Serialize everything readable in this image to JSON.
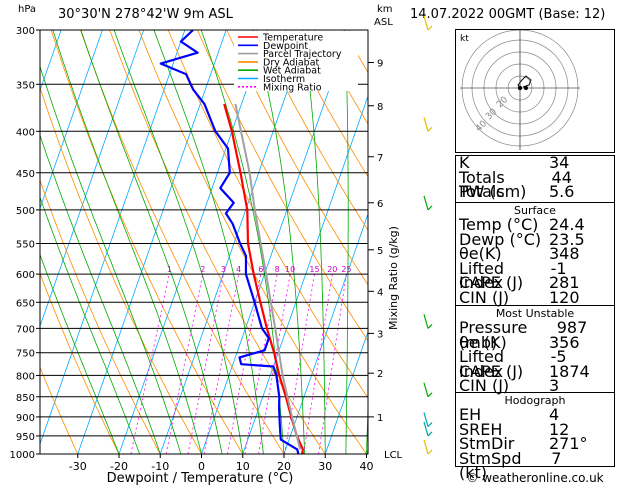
{
  "header": {
    "hpa_label": "hPa",
    "location": "30°30'N 278°42'W 9m ASL",
    "km_label": "km",
    "asl_label": "ASL",
    "datetime": "14.07.2022 00GMT (Base: 12)"
  },
  "skewt": {
    "pressure_levels": [
      300,
      350,
      400,
      450,
      500,
      550,
      600,
      650,
      700,
      750,
      800,
      850,
      900,
      950,
      1000
    ],
    "temp_ticks": [
      -30,
      -20,
      -10,
      0,
      10,
      20,
      30,
      40
    ],
    "xlabel": "Dewpoint / Temperature (°C)",
    "mixing_ratio_label": "Mixing Ratio (g/kg)",
    "mixing_ratios": [
      "1",
      "2",
      "3",
      "4",
      "6",
      "8",
      "10",
      "15",
      "20",
      "25"
    ],
    "km_ticks": [
      {
        "label": "9",
        "p": 329
      },
      {
        "label": "8",
        "p": 372
      },
      {
        "label": "7",
        "p": 430
      },
      {
        "label": "6",
        "p": 490
      },
      {
        "label": "5",
        "p": 560
      },
      {
        "label": "4",
        "p": 630
      },
      {
        "label": "3",
        "p": 710
      },
      {
        "label": "2",
        "p": 795
      },
      {
        "label": "1",
        "p": 900
      }
    ],
    "lcl_label": "LCL",
    "legend": [
      {
        "name": "Temperature",
        "color": "#ff0000"
      },
      {
        "name": "Dewpoint",
        "color": "#0000ff"
      },
      {
        "name": "Parcel Trajectory",
        "color": "#a0a0a0"
      },
      {
        "name": "Dry Adiabat",
        "color": "#ff8c00"
      },
      {
        "name": "Wet Adiabat",
        "color": "#00aa00"
      },
      {
        "name": "Isotherm",
        "color": "#00aaff"
      },
      {
        "name": "Mixing Ratio",
        "color": "#ff00ff"
      }
    ]
  },
  "chart_data": {
    "type": "line",
    "title": "30°30'N 278°42'W 9m ASL",
    "xlabel": "Dewpoint / Temperature (°C)",
    "ylabel": "hPa",
    "xlim": [
      -35,
      40
    ],
    "ylim": [
      1000,
      300
    ],
    "yscale": "log",
    "series": [
      {
        "name": "Temperature",
        "color": "#ff0000",
        "points": [
          [
            1000,
            24.4
          ],
          [
            987,
            24.2
          ],
          [
            950,
            21.6
          ],
          [
            900,
            18.6
          ],
          [
            850,
            15.6
          ],
          [
            800,
            12.2
          ],
          [
            750,
            9.0
          ],
          [
            700,
            5.2
          ],
          [
            650,
            1.4
          ],
          [
            600,
            -2.6
          ],
          [
            550,
            -6.6
          ],
          [
            500,
            -9.6
          ],
          [
            450,
            -14.4
          ],
          [
            400,
            -20.0
          ],
          [
            370,
            -24.2
          ]
        ]
      },
      {
        "name": "Dewpoint",
        "color": "#0000ff",
        "points": [
          [
            1000,
            23.5
          ],
          [
            987,
            22.8
          ],
          [
            960,
            18.0
          ],
          [
            920,
            16.5
          ],
          [
            880,
            15.0
          ],
          [
            850,
            14.0
          ],
          [
            800,
            11.5
          ],
          [
            780,
            10.0
          ],
          [
            775,
            2.0
          ],
          [
            760,
            1.0
          ],
          [
            745,
            6.5
          ],
          [
            720,
            6.5
          ],
          [
            700,
            4.0
          ],
          [
            650,
            0.0
          ],
          [
            600,
            -4.5
          ],
          [
            570,
            -6.0
          ],
          [
            550,
            -8.5
          ],
          [
            520,
            -12.0
          ],
          [
            505,
            -14.5
          ],
          [
            490,
            -13.5
          ],
          [
            470,
            -18.0
          ],
          [
            450,
            -17.0
          ],
          [
            420,
            -19.5
          ],
          [
            400,
            -24.0
          ],
          [
            370,
            -29.0
          ],
          [
            355,
            -33.0
          ],
          [
            340,
            -36.0
          ],
          [
            330,
            -43.0
          ],
          [
            320,
            -35.0
          ],
          [
            310,
            -40.0
          ],
          [
            300,
            -38.0
          ]
        ]
      },
      {
        "name": "Parcel Trajectory",
        "color": "#a0a0a0",
        "points": [
          [
            987,
            23.5
          ],
          [
            900,
            18.8
          ],
          [
            800,
            13.0
          ],
          [
            700,
            7.2
          ],
          [
            600,
            0.4
          ],
          [
            500,
            -7.8
          ],
          [
            450,
            -12.2
          ],
          [
            400,
            -17.8
          ],
          [
            370,
            -21.5
          ]
        ]
      }
    ]
  },
  "hodograph": {
    "unit_label": "kt",
    "ring_labels": [
      "40",
      "30",
      "20",
      "10"
    ]
  },
  "stats": {
    "indices": [
      {
        "label": "K",
        "value": "34"
      },
      {
        "label": "Totals Totals",
        "value": "44"
      },
      {
        "label": "PW (cm)",
        "value": "5.6"
      }
    ],
    "surface": {
      "title": "Surface",
      "rows": [
        {
          "label": "Temp (°C)",
          "value": "24.4"
        },
        {
          "label": "Dewp (°C)",
          "value": "23.5"
        },
        {
          "label": "θe(K)",
          "value": "348"
        },
        {
          "label": "Lifted Index",
          "value": "-1"
        },
        {
          "label": "CAPE (J)",
          "value": "281"
        },
        {
          "label": "CIN (J)",
          "value": "120"
        }
      ]
    },
    "most_unstable": {
      "title": "Most Unstable",
      "rows": [
        {
          "label": "Pressure (mb)",
          "value": "987"
        },
        {
          "label": "θe (K)",
          "value": "356"
        },
        {
          "label": "Lifted Index",
          "value": "-5"
        },
        {
          "label": "CAPE (J)",
          "value": "1874"
        },
        {
          "label": "CIN (J)",
          "value": "3"
        }
      ]
    },
    "hodograph": {
      "title": "Hodograph",
      "rows": [
        {
          "label": "EH",
          "value": "4"
        },
        {
          "label": "SREH",
          "value": "12"
        },
        {
          "label": "StmDir",
          "value": "271°"
        },
        {
          "label": "StmSpd (kt)",
          "value": "7"
        }
      ]
    }
  },
  "footer": {
    "copyright": "© weatheronline.co.uk"
  }
}
